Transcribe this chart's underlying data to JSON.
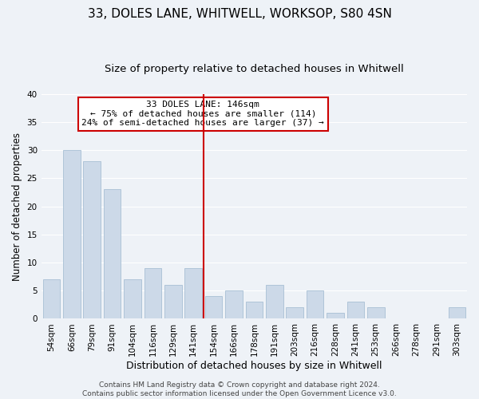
{
  "title": "33, DOLES LANE, WHITWELL, WORKSOP, S80 4SN",
  "subtitle": "Size of property relative to detached houses in Whitwell",
  "xlabel": "Distribution of detached houses by size in Whitwell",
  "ylabel": "Number of detached properties",
  "bar_color": "#ccd9e8",
  "bar_edge_color": "#a8bfd4",
  "highlight_color": "#cc0000",
  "background_color": "#eef2f7",
  "categories": [
    "54sqm",
    "66sqm",
    "79sqm",
    "91sqm",
    "104sqm",
    "116sqm",
    "129sqm",
    "141sqm",
    "154sqm",
    "166sqm",
    "178sqm",
    "191sqm",
    "203sqm",
    "216sqm",
    "228sqm",
    "241sqm",
    "253sqm",
    "266sqm",
    "278sqm",
    "291sqm",
    "303sqm"
  ],
  "values": [
    7,
    30,
    28,
    23,
    7,
    9,
    6,
    9,
    4,
    5,
    3,
    6,
    2,
    5,
    1,
    3,
    2,
    0,
    0,
    0,
    2
  ],
  "highlight_index": 7,
  "annotation_line1": "33 DOLES LANE: 146sqm",
  "annotation_line2": "← 75% of detached houses are smaller (114)",
  "annotation_line3": "24% of semi-detached houses are larger (37) →",
  "ylim": [
    0,
    40
  ],
  "yticks": [
    0,
    5,
    10,
    15,
    20,
    25,
    30,
    35,
    40
  ],
  "footer_line1": "Contains HM Land Registry data © Crown copyright and database right 2024.",
  "footer_line2": "Contains public sector information licensed under the Open Government Licence v3.0.",
  "grid_color": "#ffffff",
  "title_fontsize": 11,
  "subtitle_fontsize": 9.5,
  "xlabel_fontsize": 9,
  "ylabel_fontsize": 8.5,
  "tick_fontsize": 7.5,
  "annotation_fontsize": 8,
  "footer_fontsize": 6.5
}
